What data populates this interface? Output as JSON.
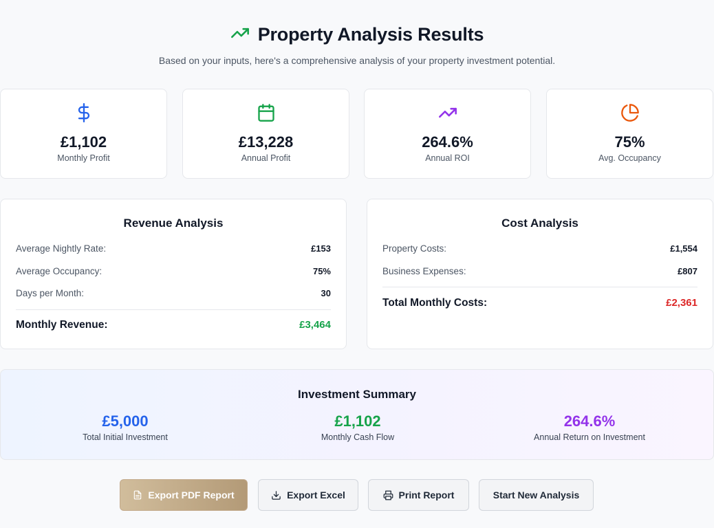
{
  "header": {
    "title": "Property Analysis Results",
    "subtitle": "Based on your inputs, here's a comprehensive analysis of your property investment potential.",
    "icon": "trending-up-icon",
    "accent": "#16a34a"
  },
  "stats": [
    {
      "value": "£1,102",
      "label": "Monthly Profit",
      "icon": "dollar-icon",
      "color": "#2563eb"
    },
    {
      "value": "£13,228",
      "label": "Annual Profit",
      "icon": "calendar-icon",
      "color": "#16a34a"
    },
    {
      "value": "264.6%",
      "label": "Annual ROI",
      "icon": "trending-up-icon",
      "color": "#9333ea"
    },
    {
      "value": "75%",
      "label": "Avg. Occupancy",
      "icon": "pie-chart-icon",
      "color": "#ea580c"
    }
  ],
  "revenue": {
    "title": "Revenue Analysis",
    "rows": [
      {
        "label": "Average Nightly Rate:",
        "value": "£153"
      },
      {
        "label": "Average Occupancy:",
        "value": "75%"
      },
      {
        "label": "Days per Month:",
        "value": "30"
      }
    ],
    "total_label": "Monthly Revenue:",
    "total_value": "£3,464"
  },
  "cost": {
    "title": "Cost Analysis",
    "rows": [
      {
        "label": "Property Costs:",
        "value": "£1,554"
      },
      {
        "label": "Business Expenses:",
        "value": "£807"
      }
    ],
    "total_label": "Total Monthly Costs:",
    "total_value": "£2,361"
  },
  "summary": {
    "title": "Investment Summary",
    "items": [
      {
        "value": "£5,000",
        "label": "Total Initial Investment",
        "color": "#2563eb"
      },
      {
        "value": "£1,102",
        "label": "Monthly Cash Flow",
        "color": "#16a34a"
      },
      {
        "value": "264.6%",
        "label": "Annual Return on Investment",
        "color": "#9333ea"
      }
    ]
  },
  "actions": {
    "export_pdf": "Export PDF Report",
    "export_excel": "Export Excel",
    "print": "Print Report",
    "new_analysis": "Start New Analysis"
  }
}
